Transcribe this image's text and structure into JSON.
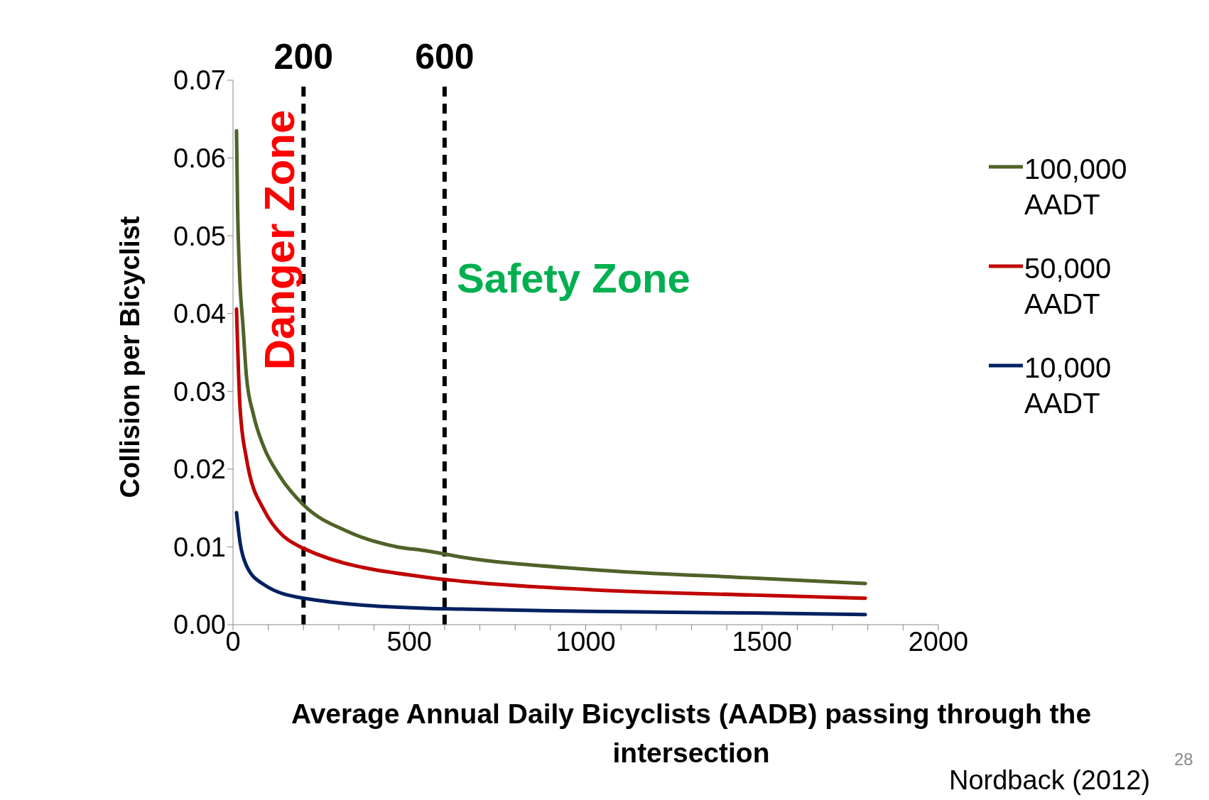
{
  "chart_data": {
    "type": "line",
    "xlabel": "Average Annual Daily Bicyclists (AADB) passing through the intersection",
    "ylabel": "Collision per Bicyclist",
    "xlim": [
      0,
      2000
    ],
    "xticks": [
      0,
      {
        "value": 100,
        "label": null
      },
      {
        "value": 200,
        "label": null
      },
      {
        "value": 300,
        "label": null
      },
      {
        "value": 400,
        "label": null
      },
      500,
      {
        "value": 600,
        "label": null
      },
      {
        "value": 700,
        "label": null
      },
      {
        "value": 800,
        "label": null
      },
      {
        "value": 900,
        "label": null
      },
      1000,
      {
        "value": 1100,
        "label": null
      },
      {
        "value": 1200,
        "label": null
      },
      {
        "value": 1300,
        "label": null
      },
      {
        "value": 1400,
        "label": null
      },
      1500,
      {
        "value": 1600,
        "label": null
      },
      {
        "value": 1700,
        "label": null
      },
      {
        "value": 1800,
        "label": null
      },
      {
        "value": 1900,
        "label": null
      },
      2000
    ],
    "ylim": [
      0,
      0.07
    ],
    "yticks": [
      {
        "value": 0,
        "label": "0.00"
      },
      {
        "value": 0.01,
        "label": "0.01"
      },
      {
        "value": 0.02,
        "label": "0.02"
      },
      {
        "value": 0.03,
        "label": "0.03"
      },
      {
        "value": 0.04,
        "label": "0.04"
      },
      {
        "value": 0.05,
        "label": "0.05"
      },
      {
        "value": 0.06,
        "label": "0.06"
      },
      {
        "value": 0.07,
        "label": "0.07"
      }
    ],
    "legend": "right",
    "marker": "none",
    "series": [
      {
        "name": "100,000 AADT",
        "color": "#4f6228",
        "x": [
          10,
          13,
          18,
          29,
          38,
          58,
          86,
          134,
          200,
          324,
          466,
          548,
          647,
          1011,
          1474,
          1793
        ],
        "values": [
          0.0635,
          0.0537,
          0.0459,
          0.038,
          0.032,
          0.027,
          0.023,
          0.019,
          0.0154,
          0.012,
          0.01,
          0.0095,
          0.0087,
          0.0071,
          0.006,
          0.0053
        ]
      },
      {
        "name": "50,000 AADT",
        "color": "#c00000",
        "x": [
          10,
          20,
          38,
          86,
          200,
          548,
          647,
          1011,
          1474,
          1793
        ],
        "values": [
          0.0406,
          0.0279,
          0.0214,
          0.0149,
          0.0098,
          0.0061,
          0.0056,
          0.0045,
          0.0038,
          0.0034
        ]
      },
      {
        "name": "10,000 AADT",
        "color": "#002060",
        "x": [
          10,
          20,
          38,
          86,
          200,
          548,
          647,
          1011,
          1474,
          1793
        ],
        "values": [
          0.0144,
          0.0106,
          0.0076,
          0.0052,
          0.0034,
          0.0021,
          0.002,
          0.0017,
          0.0015,
          0.0013
        ]
      }
    ],
    "ref_lines": [
      {
        "axis": "x",
        "value": 200,
        "label": "200",
        "color": "#000000",
        "line_style": "dashed"
      },
      {
        "axis": "x",
        "value": 600,
        "label": "600",
        "color": "#000000",
        "line_style": "dashed"
      }
    ],
    "annotations": [
      "Danger Zone",
      "Safety Zone",
      "Nordback (2012)",
      "28"
    ]
  }
}
